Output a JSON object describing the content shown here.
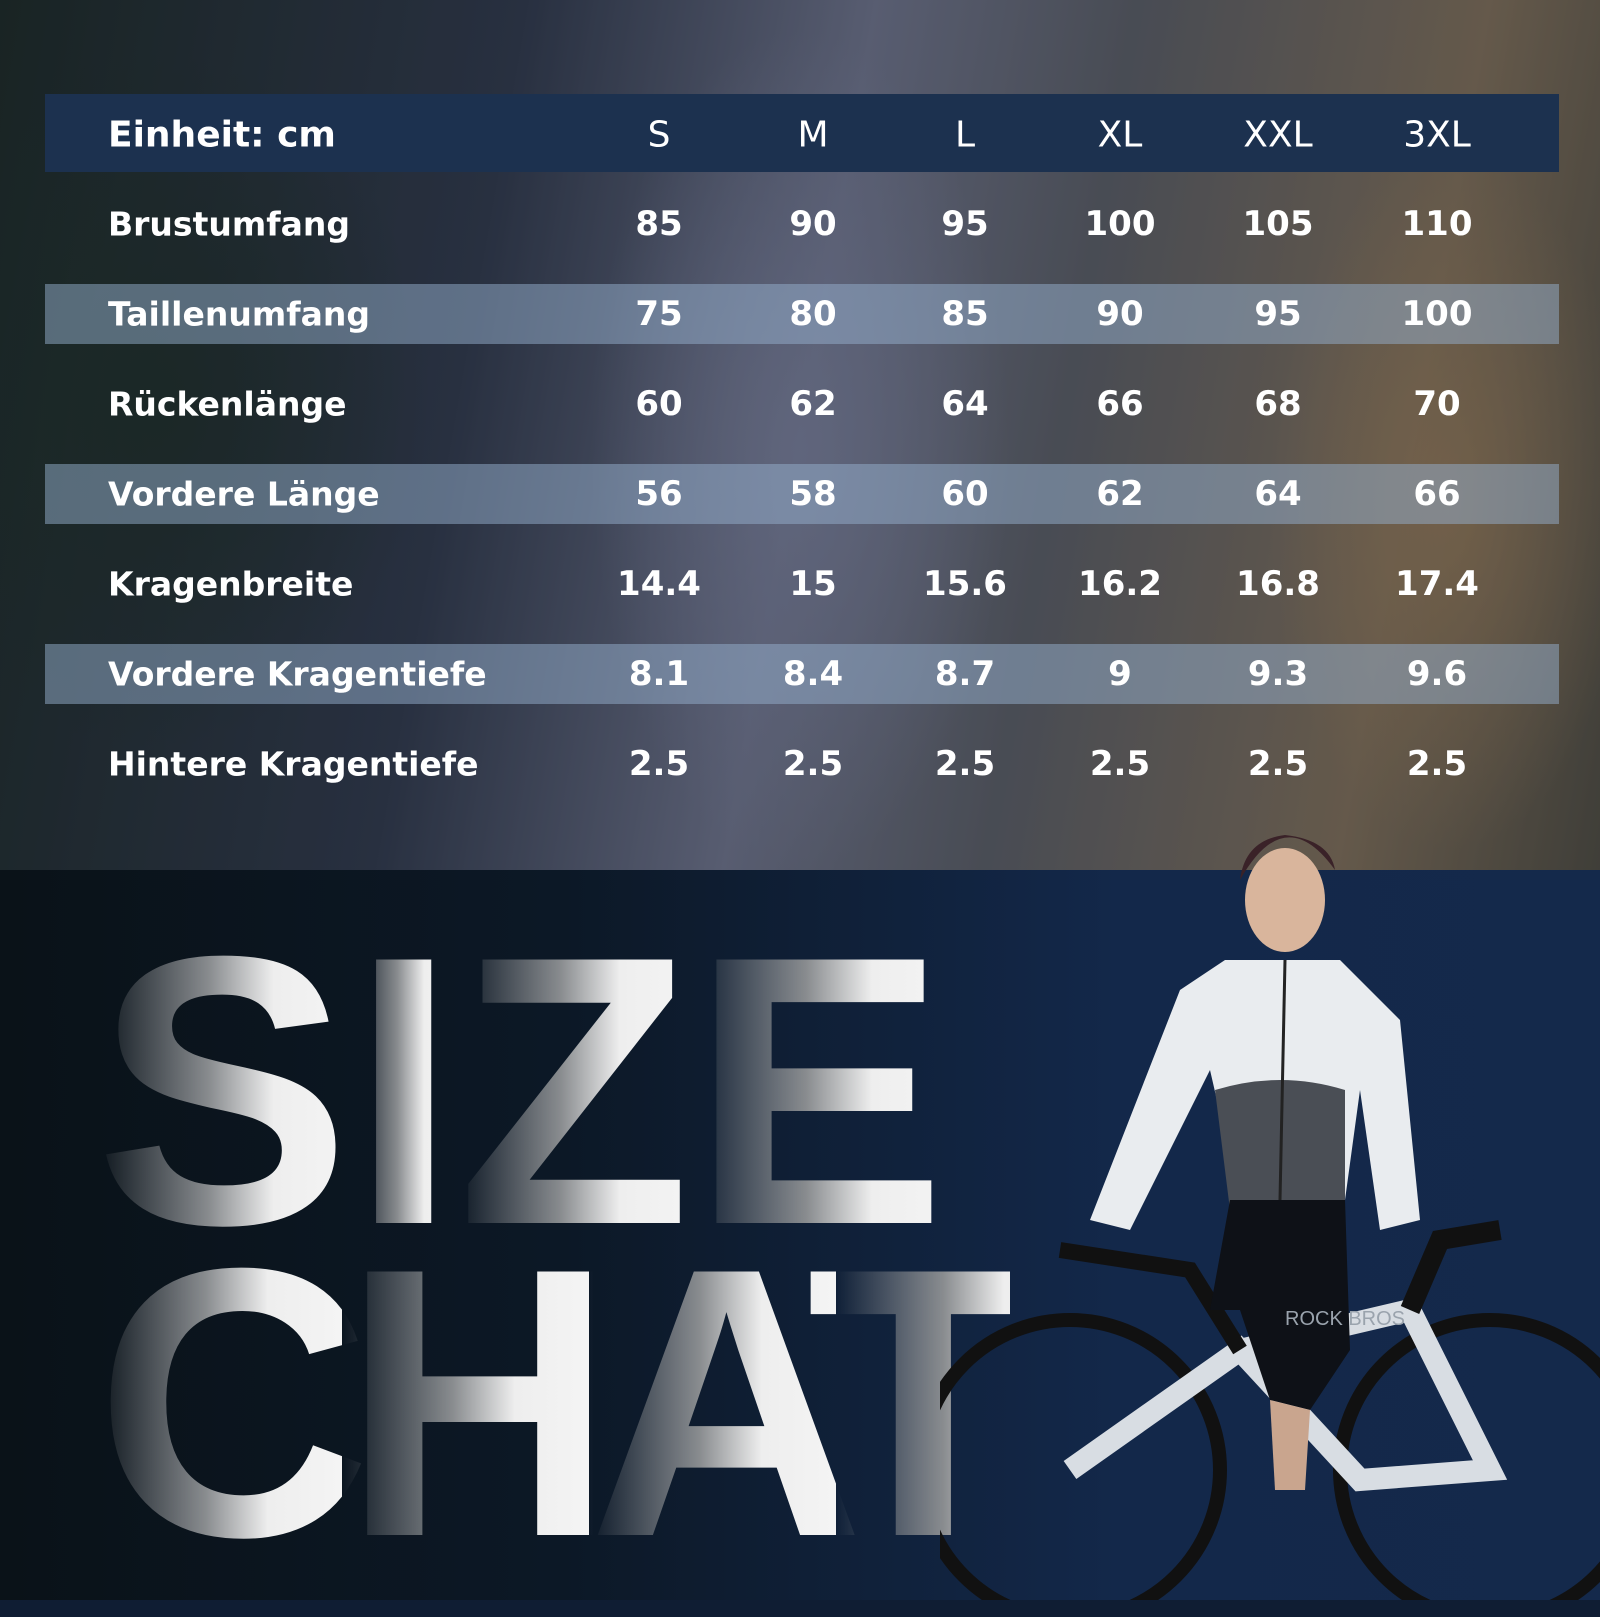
{
  "table": {
    "unit_label": "Einheit: cm",
    "sizes": [
      "S",
      "M",
      "L",
      "XL",
      "XXL",
      "3XL"
    ],
    "rows": [
      {
        "label": "Brustumfang",
        "values": [
          "85",
          "90",
          "95",
          "100",
          "105",
          "110"
        ]
      },
      {
        "label": "Taillenumfang",
        "values": [
          "75",
          "80",
          "85",
          "90",
          "95",
          "100"
        ]
      },
      {
        "label": "Rückenlänge",
        "values": [
          "60",
          "62",
          "64",
          "66",
          "68",
          "70"
        ]
      },
      {
        "label": "Vordere Länge",
        "values": [
          "56",
          "58",
          "60",
          "62",
          "64",
          "66"
        ]
      },
      {
        "label": "Kragenbreite",
        "values": [
          "14.4",
          "15",
          "15.6",
          "16.2",
          "16.8",
          "17.4"
        ]
      },
      {
        "label": "Vordere Kragentiefe",
        "values": [
          "8.1",
          "8.4",
          "8.7",
          "9",
          "9.3",
          "9.6"
        ]
      },
      {
        "label": "Hintere Kragentiefe",
        "values": [
          "2.5",
          "2.5",
          "2.5",
          "2.5",
          "2.5",
          "2.5"
        ]
      }
    ]
  },
  "banner": {
    "line1": "SIZE",
    "line2": "CHAT"
  },
  "brand": {
    "logo": "ROCK BROS"
  },
  "colors": {
    "header": "#1c314f",
    "background_bottom": "#14294b"
  }
}
